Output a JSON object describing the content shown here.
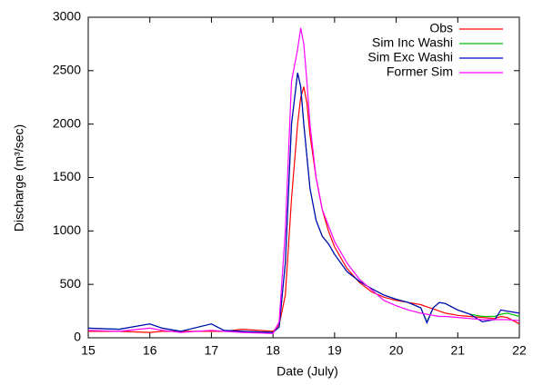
{
  "chart_data": {
    "type": "line",
    "xlabel": "Date (July)",
    "ylabel": "Discharge (m³/sec)",
    "x": [
      15,
      15.5,
      16,
      16.2,
      16.5,
      17,
      17.2,
      17.5,
      18,
      18.1,
      18.2,
      18.3,
      18.4,
      18.45,
      18.5,
      18.55,
      18.6,
      18.7,
      18.8,
      18.9,
      19,
      19.2,
      19.4,
      19.6,
      19.8,
      20,
      20.2,
      20.4,
      20.5,
      20.6,
      20.7,
      20.8,
      21,
      21.2,
      21.4,
      21.6,
      21.7,
      21.8,
      22
    ],
    "series": [
      {
        "name": "Obs",
        "color": "#ff0000",
        "values": [
          60,
          60,
          50,
          60,
          60,
          60,
          60,
          80,
          60,
          120,
          400,
          1300,
          2000,
          2250,
          2350,
          2200,
          1900,
          1500,
          1200,
          1000,
          850,
          650,
          520,
          430,
          380,
          350,
          330,
          310,
          290,
          270,
          250,
          230,
          210,
          200,
          190,
          180,
          200,
          190,
          130
        ]
      },
      {
        "name": "Sim Inc Washi",
        "color": "#00c000",
        "values": [
          90,
          80,
          130,
          90,
          60,
          130,
          70,
          60,
          50,
          100,
          700,
          2000,
          2480,
          2350,
          2000,
          1700,
          1400,
          1100,
          950,
          880,
          780,
          620,
          530,
          460,
          400,
          360,
          330,
          280,
          150,
          280,
          330,
          320,
          260,
          220,
          200,
          200,
          220,
          230,
          200
        ]
      },
      {
        "name": "Sim Exc Washi",
        "color": "#0000c0",
        "values": [
          90,
          80,
          130,
          90,
          60,
          130,
          70,
          60,
          50,
          100,
          700,
          2000,
          2480,
          2350,
          2000,
          1700,
          1400,
          1100,
          950,
          880,
          780,
          620,
          530,
          460,
          400,
          360,
          330,
          280,
          140,
          280,
          330,
          320,
          260,
          220,
          150,
          170,
          260,
          250,
          230
        ]
      },
      {
        "name": "Former Sim",
        "color": "#ff00ff",
        "values": [
          70,
          60,
          90,
          70,
          50,
          70,
          60,
          50,
          40,
          150,
          1000,
          2400,
          2700,
          2900,
          2750,
          2400,
          2000,
          1500,
          1200,
          1050,
          900,
          700,
          550,
          450,
          350,
          300,
          260,
          230,
          220,
          210,
          200,
          200,
          190,
          180,
          170,
          170,
          170,
          170,
          160
        ]
      }
    ],
    "xlim": [
      15,
      22
    ],
    "xticks": [
      15,
      16,
      17,
      18,
      19,
      20,
      21,
      22
    ],
    "ylim": [
      0,
      3000
    ],
    "yticks": [
      0,
      500,
      1000,
      1500,
      2000,
      2500,
      3000
    ],
    "legend": "upper-right"
  }
}
